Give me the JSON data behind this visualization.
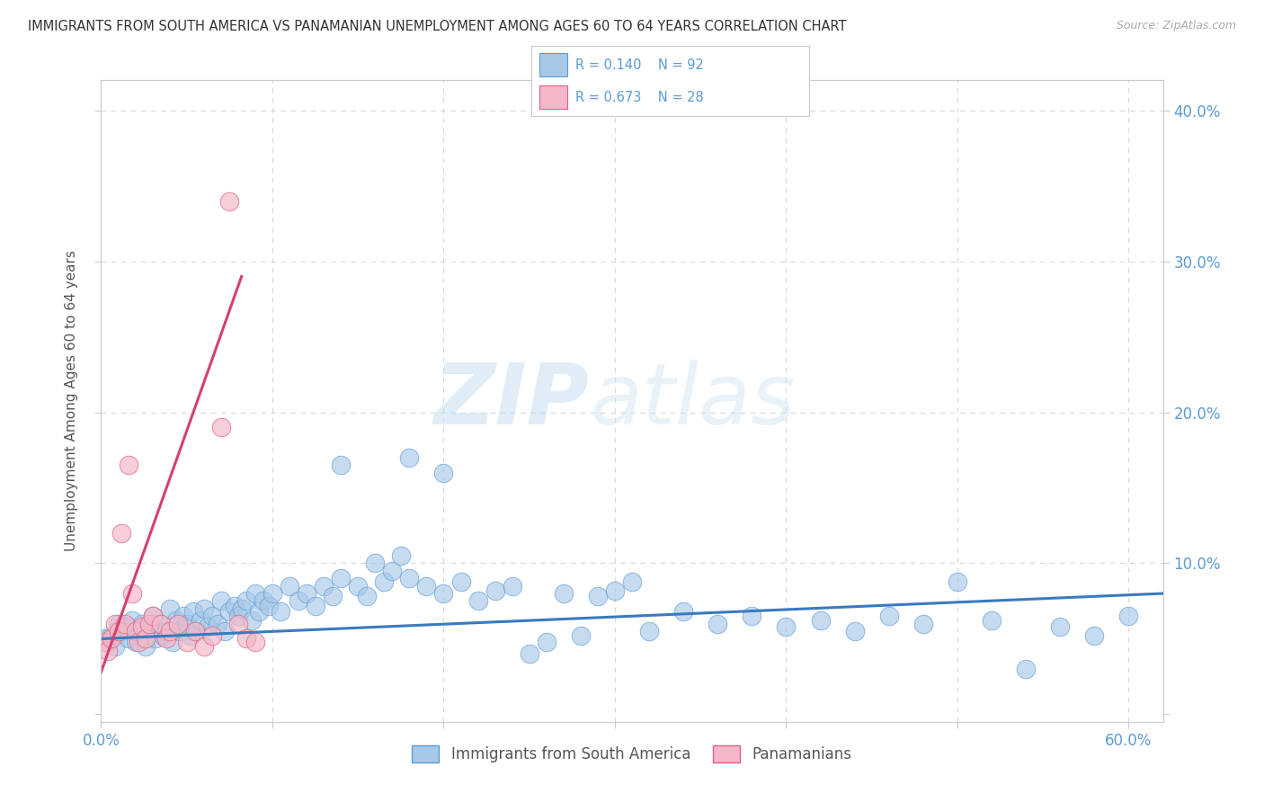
{
  "title": "IMMIGRANTS FROM SOUTH AMERICA VS PANAMANIAN UNEMPLOYMENT AMONG AGES 60 TO 64 YEARS CORRELATION CHART",
  "source": "Source: ZipAtlas.com",
  "ylabel": "Unemployment Among Ages 60 to 64 years",
  "xlim": [
    0.0,
    0.62
  ],
  "ylim": [
    -0.005,
    0.42
  ],
  "xticks": [
    0.0,
    0.1,
    0.2,
    0.3,
    0.4,
    0.5,
    0.6
  ],
  "yticks": [
    0.0,
    0.1,
    0.2,
    0.3,
    0.4
  ],
  "blue_R": 0.14,
  "blue_N": 92,
  "pink_R": 0.673,
  "pink_N": 28,
  "blue_color": "#a8c8e8",
  "pink_color": "#f4b8c8",
  "blue_edge_color": "#5b9bd5",
  "pink_edge_color": "#e06080",
  "blue_line_color": "#3a7abf",
  "pink_line_color": "#d44070",
  "watermark_zip": "ZIP",
  "watermark_atlas": "atlas",
  "legend_label_blue": "Immigrants from South America",
  "legend_label_pink": "Panamanians",
  "blue_scatter_x": [
    0.002,
    0.004,
    0.006,
    0.008,
    0.01,
    0.012,
    0.014,
    0.016,
    0.018,
    0.02,
    0.022,
    0.024,
    0.026,
    0.028,
    0.03,
    0.032,
    0.034,
    0.036,
    0.038,
    0.04,
    0.042,
    0.044,
    0.046,
    0.048,
    0.05,
    0.052,
    0.054,
    0.056,
    0.058,
    0.06,
    0.062,
    0.065,
    0.068,
    0.07,
    0.072,
    0.075,
    0.078,
    0.08,
    0.082,
    0.085,
    0.088,
    0.09,
    0.092,
    0.095,
    0.098,
    0.1,
    0.105,
    0.11,
    0.115,
    0.12,
    0.125,
    0.13,
    0.135,
    0.14,
    0.15,
    0.155,
    0.16,
    0.165,
    0.17,
    0.175,
    0.18,
    0.19,
    0.2,
    0.21,
    0.22,
    0.23,
    0.24,
    0.25,
    0.26,
    0.27,
    0.28,
    0.29,
    0.3,
    0.31,
    0.32,
    0.34,
    0.36,
    0.38,
    0.4,
    0.42,
    0.44,
    0.46,
    0.48,
    0.5,
    0.52,
    0.54,
    0.56,
    0.58,
    0.6,
    0.18,
    0.2,
    0.14
  ],
  "blue_scatter_y": [
    0.05,
    0.048,
    0.052,
    0.045,
    0.06,
    0.055,
    0.058,
    0.05,
    0.062,
    0.048,
    0.055,
    0.06,
    0.045,
    0.058,
    0.065,
    0.05,
    0.06,
    0.052,
    0.055,
    0.07,
    0.048,
    0.062,
    0.055,
    0.065,
    0.06,
    0.052,
    0.068,
    0.055,
    0.062,
    0.07,
    0.058,
    0.065,
    0.06,
    0.075,
    0.055,
    0.068,
    0.072,
    0.065,
    0.07,
    0.075,
    0.062,
    0.08,
    0.068,
    0.075,
    0.072,
    0.08,
    0.068,
    0.085,
    0.075,
    0.08,
    0.072,
    0.085,
    0.078,
    0.09,
    0.085,
    0.078,
    0.1,
    0.088,
    0.095,
    0.105,
    0.09,
    0.085,
    0.08,
    0.088,
    0.075,
    0.082,
    0.085,
    0.04,
    0.048,
    0.08,
    0.052,
    0.078,
    0.082,
    0.088,
    0.055,
    0.068,
    0.06,
    0.065,
    0.058,
    0.062,
    0.055,
    0.065,
    0.06,
    0.088,
    0.062,
    0.03,
    0.058,
    0.052,
    0.065,
    0.17,
    0.16,
    0.165
  ],
  "pink_scatter_x": [
    0.002,
    0.004,
    0.006,
    0.008,
    0.01,
    0.012,
    0.014,
    0.016,
    0.018,
    0.02,
    0.022,
    0.024,
    0.026,
    0.028,
    0.03,
    0.035,
    0.038,
    0.04,
    0.045,
    0.05,
    0.055,
    0.06,
    0.065,
    0.07,
    0.075,
    0.08,
    0.085,
    0.09
  ],
  "pink_scatter_y": [
    0.048,
    0.042,
    0.05,
    0.06,
    0.055,
    0.12,
    0.06,
    0.165,
    0.08,
    0.055,
    0.048,
    0.058,
    0.05,
    0.06,
    0.065,
    0.06,
    0.05,
    0.055,
    0.06,
    0.048,
    0.055,
    0.045,
    0.052,
    0.19,
    0.34,
    0.06,
    0.05,
    0.048
  ],
  "blue_trend_x": [
    0.0,
    0.62
  ],
  "blue_trend_y": [
    0.05,
    0.08
  ],
  "pink_trend_x": [
    0.0,
    0.082
  ],
  "pink_trend_y": [
    0.028,
    0.29
  ],
  "bg_color": "#ffffff",
  "grid_color": "#d8d8d8",
  "axis_color": "#cccccc",
  "tick_label_color": "#5b9bd5",
  "ylabel_color": "#555555",
  "title_color": "#333333"
}
